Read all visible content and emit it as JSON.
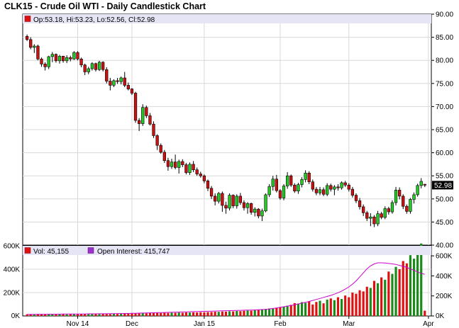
{
  "chart_data": [
    {
      "type": "candlestick",
      "title": "CLK15 - Crude Oil WTI - Daily Candlestick Chart",
      "info": {
        "ohlc_text": "Op:53.18, Hi:53.23, Lo:52.56, Cl:52.98",
        "last_price_label": "52.98",
        "last_price": 52.98
      },
      "ylim": [
        40,
        90
      ],
      "y_ticks": [
        "90.00",
        "85.00",
        "80.00",
        "75.00",
        "70.00",
        "65.00",
        "60.00",
        "55.00",
        "50.00",
        "45.00",
        "40.00"
      ],
      "x_ticks": [
        "Nov 14",
        "Dec",
        "Jan 15",
        "Feb",
        "Mar",
        "Apr"
      ],
      "x_tick_index": [
        14,
        29,
        49,
        70,
        89,
        111
      ],
      "colors": {
        "up": "#22cc22",
        "down": "#cc1111"
      },
      "candles": [
        [
          85.2,
          85.6,
          84.2,
          84.5
        ],
        [
          84.5,
          85.0,
          82.4,
          82.8
        ],
        [
          82.8,
          83.5,
          81.6,
          83.1
        ],
        [
          83.1,
          83.4,
          80.0,
          80.3
        ],
        [
          80.3,
          80.6,
          78.6,
          79.2
        ],
        [
          79.2,
          79.6,
          77.8,
          78.6
        ],
        [
          78.6,
          81.0,
          78.1,
          80.8
        ],
        [
          80.8,
          81.8,
          79.6,
          81.3
        ],
        [
          81.3,
          81.5,
          79.5,
          79.9
        ],
        [
          79.9,
          81.2,
          79.3,
          80.9
        ],
        [
          80.9,
          81.0,
          79.5,
          79.9
        ],
        [
          79.9,
          81.1,
          79.4,
          80.6
        ],
        [
          80.6,
          81.0,
          79.8,
          80.3
        ],
        [
          80.3,
          82.0,
          80.1,
          81.7
        ],
        [
          81.7,
          82.0,
          80.0,
          80.3
        ],
        [
          80.3,
          80.6,
          78.5,
          79.0
        ],
        [
          79.0,
          79.3,
          76.8,
          77.5
        ],
        [
          77.5,
          78.6,
          77.0,
          78.2
        ],
        [
          78.2,
          79.6,
          77.8,
          79.3
        ],
        [
          79.3,
          79.5,
          77.6,
          78.0
        ],
        [
          78.0,
          79.9,
          77.7,
          79.6
        ],
        [
          79.6,
          79.8,
          77.6,
          78.0
        ],
        [
          78.0,
          78.5,
          75.0,
          75.5
        ],
        [
          75.5,
          76.2,
          73.5,
          74.6
        ],
        [
          74.6,
          75.9,
          74.2,
          75.6
        ],
        [
          75.6,
          76.2,
          74.9,
          75.4
        ],
        [
          75.4,
          76.5,
          74.8,
          76.2
        ],
        [
          76.2,
          77.5,
          74.2,
          74.6
        ],
        [
          74.6,
          75.2,
          73.5,
          73.8
        ],
        [
          73.8,
          74.0,
          72.5,
          72.9
        ],
        [
          72.9,
          73.2,
          66.5,
          67.0
        ],
        [
          67.0,
          67.5,
          64.7,
          66.3
        ],
        [
          66.3,
          70.5,
          65.8,
          69.8
        ],
        [
          69.8,
          70.2,
          67.5,
          68.0
        ],
        [
          68.0,
          68.6,
          65.9,
          66.2
        ],
        [
          66.2,
          66.8,
          63.2,
          63.7
        ],
        [
          63.7,
          64.0,
          60.6,
          61.6
        ],
        [
          61.6,
          62.0,
          59.8,
          60.1
        ],
        [
          60.1,
          60.6,
          57.8,
          58.3
        ],
        [
          58.3,
          58.9,
          56.1,
          57.0
        ],
        [
          57.0,
          58.7,
          56.5,
          58.0
        ],
        [
          58.0,
          59.6,
          56.4,
          56.8
        ],
        [
          56.8,
          58.5,
          55.5,
          58.1
        ],
        [
          58.1,
          58.6,
          56.9,
          57.4
        ],
        [
          57.4,
          57.8,
          55.3,
          55.7
        ],
        [
          55.7,
          57.9,
          55.2,
          57.5
        ],
        [
          57.5,
          58.2,
          55.8,
          56.3
        ],
        [
          56.3,
          56.8,
          55.0,
          55.4
        ],
        [
          55.4,
          55.9,
          54.6,
          55.0
        ],
        [
          55.0,
          55.3,
          53.4,
          53.9
        ],
        [
          53.9,
          54.2,
          51.7,
          52.3
        ],
        [
          52.3,
          52.8,
          50.0,
          50.6
        ],
        [
          50.6,
          51.2,
          48.6,
          49.5
        ],
        [
          49.5,
          51.5,
          49.0,
          51.2
        ],
        [
          51.2,
          51.6,
          47.2,
          48.6
        ],
        [
          48.6,
          49.4,
          46.8,
          48.0
        ],
        [
          48.0,
          51.2,
          47.5,
          50.8
        ],
        [
          50.8,
          51.0,
          48.0,
          48.5
        ],
        [
          48.5,
          51.0,
          47.9,
          50.6
        ],
        [
          50.6,
          51.3,
          48.7,
          49.2
        ],
        [
          49.2,
          49.7,
          47.5,
          48.1
        ],
        [
          48.1,
          49.3,
          46.8,
          49.0
        ],
        [
          49.0,
          49.2,
          46.6,
          47.1
        ],
        [
          47.1,
          48.2,
          46.2,
          47.8
        ],
        [
          47.8,
          48.0,
          45.8,
          46.3
        ],
        [
          46.3,
          47.9,
          45.2,
          47.4
        ],
        [
          47.4,
          51.2,
          47.1,
          50.9
        ],
        [
          50.9,
          53.2,
          50.4,
          52.7
        ],
        [
          52.7,
          55.0,
          51.8,
          54.3
        ],
        [
          54.3,
          55.2,
          51.4,
          51.8
        ],
        [
          51.8,
          52.1,
          49.8,
          50.2
        ],
        [
          50.2,
          53.2,
          49.7,
          52.8
        ],
        [
          52.8,
          55.8,
          52.2,
          55.0
        ],
        [
          55.0,
          55.3,
          52.6,
          53.0
        ],
        [
          53.0,
          53.4,
          51.3,
          51.7
        ],
        [
          51.7,
          53.5,
          51.1,
          53.1
        ],
        [
          53.1,
          54.7,
          52.5,
          54.2
        ],
        [
          54.2,
          56.2,
          53.6,
          55.6
        ],
        [
          55.6,
          56.0,
          53.2,
          53.7
        ],
        [
          53.7,
          54.2,
          51.6,
          52.1
        ],
        [
          52.1,
          52.6,
          50.8,
          51.3
        ],
        [
          51.3,
          52.6,
          50.8,
          52.0
        ],
        [
          52.0,
          52.5,
          50.6,
          51.0
        ],
        [
          51.0,
          53.4,
          50.6,
          52.9
        ],
        [
          52.9,
          53.3,
          51.6,
          52.1
        ],
        [
          52.1,
          53.0,
          50.8,
          52.6
        ],
        [
          52.6,
          53.2,
          51.8,
          52.4
        ],
        [
          52.4,
          53.8,
          52.0,
          53.5
        ],
        [
          53.5,
          53.9,
          52.6,
          53.0
        ],
        [
          53.0,
          53.4,
          51.6,
          52.1
        ],
        [
          52.1,
          52.6,
          50.3,
          50.8
        ],
        [
          50.8,
          51.2,
          49.1,
          49.6
        ],
        [
          49.6,
          50.2,
          47.7,
          48.3
        ],
        [
          48.3,
          48.8,
          46.3,
          47.0
        ],
        [
          47.0,
          47.4,
          45.2,
          45.8
        ],
        [
          45.8,
          46.9,
          44.1,
          46.1
        ],
        [
          46.1,
          46.5,
          43.9,
          44.6
        ],
        [
          44.6,
          47.4,
          44.1,
          46.8
        ],
        [
          46.8,
          47.2,
          45.6,
          46.0
        ],
        [
          46.0,
          48.4,
          45.6,
          47.9
        ],
        [
          47.9,
          48.3,
          46.6,
          47.2
        ],
        [
          47.2,
          49.7,
          46.8,
          49.2
        ],
        [
          49.2,
          52.6,
          48.6,
          51.9
        ],
        [
          51.9,
          52.5,
          49.9,
          50.6
        ],
        [
          50.6,
          51.0,
          47.8,
          48.4
        ],
        [
          48.4,
          48.8,
          46.8,
          47.3
        ],
        [
          47.3,
          50.2,
          46.8,
          49.9
        ],
        [
          49.9,
          51.4,
          49.0,
          50.9
        ],
        [
          50.9,
          53.3,
          50.5,
          52.9
        ],
        [
          52.9,
          54.5,
          52.3,
          53.8
        ],
        [
          53.18,
          53.23,
          52.56,
          52.98
        ]
      ],
      "volume": {
        "label": "Vol: 45,155",
        "ylim": [
          0,
          600000
        ],
        "y_ticks": [
          "600K",
          "400K",
          "200K",
          "0K"
        ],
        "y_ticks_left": [
          "600K",
          "400K",
          "200K",
          "0K"
        ],
        "values": [
          14000,
          15000,
          14000,
          16000,
          14000,
          15000,
          16000,
          14000,
          15000,
          16000,
          15000,
          14000,
          16000,
          17000,
          15000,
          16000,
          17000,
          15000,
          16000,
          17000,
          16000,
          18000,
          17000,
          16000,
          18000,
          17000,
          18000,
          19000,
          20000,
          21000,
          23000,
          22000,
          24000,
          23000,
          25000,
          24000,
          26000,
          25000,
          27000,
          26000,
          28000,
          27000,
          29000,
          28000,
          30000,
          29000,
          31000,
          30000,
          32000,
          31000,
          33000,
          34000,
          36000,
          35000,
          38000,
          37000,
          40000,
          39000,
          42000,
          41000,
          44000,
          46000,
          45000,
          48000,
          52000,
          56000,
          60000,
          64000,
          62000,
          70000,
          74000,
          80000,
          88000,
          95000,
          110000,
          105000,
          118000,
          112000,
          125000,
          98000,
          120000,
          130000,
          108000,
          140000,
          150000,
          135000,
          160000,
          145000,
          175000,
          160000,
          200000,
          190000,
          220000,
          210000,
          250000,
          240000,
          300000,
          280000,
          330000,
          310000,
          380000,
          360000,
          420000,
          400000,
          470000,
          450000,
          520000,
          490000,
          560000,
          620000,
          45155
        ],
        "open_interest": {
          "label": "Open Interest: 415,747",
          "ylim": [
            0,
            700000
          ],
          "y_ticks": [
            "600K",
            "400K",
            "200K",
            "0K"
          ],
          "values": [
            16000,
            16000,
            16000,
            17000,
            17000,
            17000,
            18000,
            18000,
            18000,
            18000,
            19000,
            19000,
            19000,
            20000,
            20000,
            20000,
            20000,
            21000,
            21000,
            21000,
            22000,
            22000,
            22000,
            23000,
            23000,
            24000,
            24000,
            25000,
            25000,
            26000,
            27000,
            28000,
            29000,
            30000,
            31000,
            32000,
            33000,
            34000,
            35000,
            36000,
            37000,
            38000,
            39000,
            40000,
            41000,
            42000,
            43000,
            44000,
            45000,
            46000,
            47000,
            48000,
            49000,
            50000,
            51000,
            52000,
            53000,
            54000,
            55000,
            56000,
            57000,
            58000,
            59000,
            60000,
            62000,
            64000,
            66000,
            70000,
            75000,
            80000,
            86000,
            92000,
            98000,
            104000,
            112000,
            120000,
            128000,
            136000,
            145000,
            155000,
            165000,
            175000,
            185000,
            195000,
            205000,
            218000,
            232000,
            248000,
            268000,
            290000,
            318000,
            350000,
            390000,
            430000,
            470000,
            500000,
            520000,
            530000,
            530000,
            528000,
            524000,
            520000,
            515000,
            505000,
            495000,
            485000,
            470000,
            455000,
            440000,
            425000,
            415747
          ]
        }
      },
      "volume_colors": {
        "up": "#1a8a1a",
        "down": "#dd1111",
        "oi": "#cc00cc"
      }
    }
  ]
}
